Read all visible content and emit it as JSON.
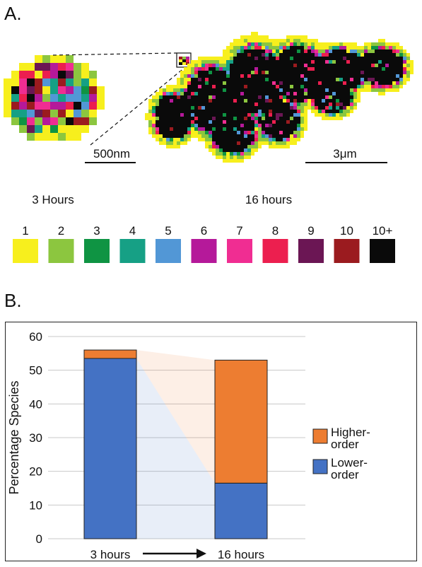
{
  "panel_a": {
    "label": "A.",
    "scalebar_small": "500nm",
    "scalebar_large": "3μm",
    "time_left": "3 Hours",
    "time_right": "16 hours",
    "legend": [
      {
        "label": "1",
        "color": "#f7ef1d"
      },
      {
        "label": "2",
        "color": "#8cc63f"
      },
      {
        "label": "3",
        "color": "#0f9443"
      },
      {
        "label": "4",
        "color": "#16a085"
      },
      {
        "label": "5",
        "color": "#5297d6"
      },
      {
        "label": "6",
        "color": "#b5199a"
      },
      {
        "label": "7",
        "color": "#f02d92"
      },
      {
        "label": "8",
        "color": "#ec1f4f"
      },
      {
        "label": "9",
        "color": "#6b1654"
      },
      {
        "label": "10",
        "color": "#9b1b1f"
      },
      {
        "label": "10+",
        "color": "#0a0a0a"
      }
    ]
  },
  "panel_b": {
    "label": "B."
  },
  "chart_data": {
    "type": "bar",
    "stacked": true,
    "categories": [
      "3 hours",
      "16 hours"
    ],
    "series": [
      {
        "name": "Lower-order",
        "values": [
          53.5,
          16.5
        ],
        "color": "#4472c4"
      },
      {
        "name": "Higher-order",
        "values": [
          2.5,
          36.5
        ],
        "color": "#ed7d31"
      }
    ],
    "legend_lines": {
      "Higher-order": [
        "Higher-",
        "order"
      ],
      "Lower-order": [
        "Lower-",
        "order"
      ]
    },
    "ylabel": "Percentage Species",
    "ylim": [
      0,
      60
    ],
    "yticks": [
      0,
      10,
      20,
      30,
      40,
      50,
      60
    ],
    "grid": true,
    "legend_position": "right"
  }
}
